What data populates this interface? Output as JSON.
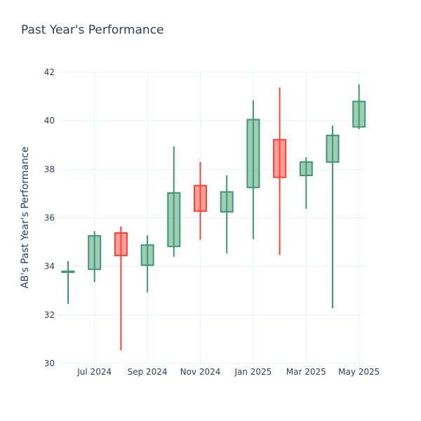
{
  "chart_data": {
    "type": "candlestick",
    "title": "Past Year's Performance",
    "xlabel": "",
    "ylabel": "AB's Past Year's Performance",
    "ylim": [
      30,
      42
    ],
    "yticks": [
      "30",
      "32",
      "34",
      "36",
      "38",
      "40",
      "42"
    ],
    "xticks": [
      {
        "index": 1,
        "label": "Jul 2024"
      },
      {
        "index": 3,
        "label": "Sep 2024"
      },
      {
        "index": 5,
        "label": "Nov 2024"
      },
      {
        "index": 7,
        "label": "Jan 2025"
      },
      {
        "index": 9,
        "label": "Mar 2025"
      },
      {
        "index": 11,
        "label": "May 2025"
      }
    ],
    "increasing_color": "#3d9970",
    "decreasing_color": "#ff4136",
    "grid": true,
    "candles": [
      {
        "month": "Jun 2024",
        "open": 33.76,
        "high": 34.22,
        "low": 32.46,
        "close": 33.8
      },
      {
        "month": "Jul 2024",
        "open": 33.88,
        "high": 35.45,
        "low": 33.35,
        "close": 35.26
      },
      {
        "month": "Aug 2024",
        "open": 35.38,
        "high": 35.65,
        "low": 30.55,
        "close": 34.45
      },
      {
        "month": "Sep 2024",
        "open": 34.05,
        "high": 35.28,
        "low": 32.93,
        "close": 34.88
      },
      {
        "month": "Oct 2024",
        "open": 34.82,
        "high": 38.95,
        "low": 34.4,
        "close": 37.03
      },
      {
        "month": "Nov 2024",
        "open": 37.33,
        "high": 38.3,
        "low": 35.1,
        "close": 36.28
      },
      {
        "month": "Dec 2024",
        "open": 36.25,
        "high": 37.75,
        "low": 34.53,
        "close": 37.07
      },
      {
        "month": "Jan 2025",
        "open": 37.25,
        "high": 40.85,
        "low": 35.12,
        "close": 40.05
      },
      {
        "month": "Feb 2025",
        "open": 39.22,
        "high": 41.37,
        "low": 34.47,
        "close": 37.67
      },
      {
        "month": "Mar 2025",
        "open": 37.75,
        "high": 38.5,
        "low": 36.38,
        "close": 38.3
      },
      {
        "month": "Apr 2025",
        "open": 38.3,
        "high": 39.8,
        "low": 32.28,
        "close": 39.4
      },
      {
        "month": "May 2025",
        "open": 39.75,
        "high": 41.5,
        "low": 39.65,
        "close": 40.8
      }
    ]
  }
}
